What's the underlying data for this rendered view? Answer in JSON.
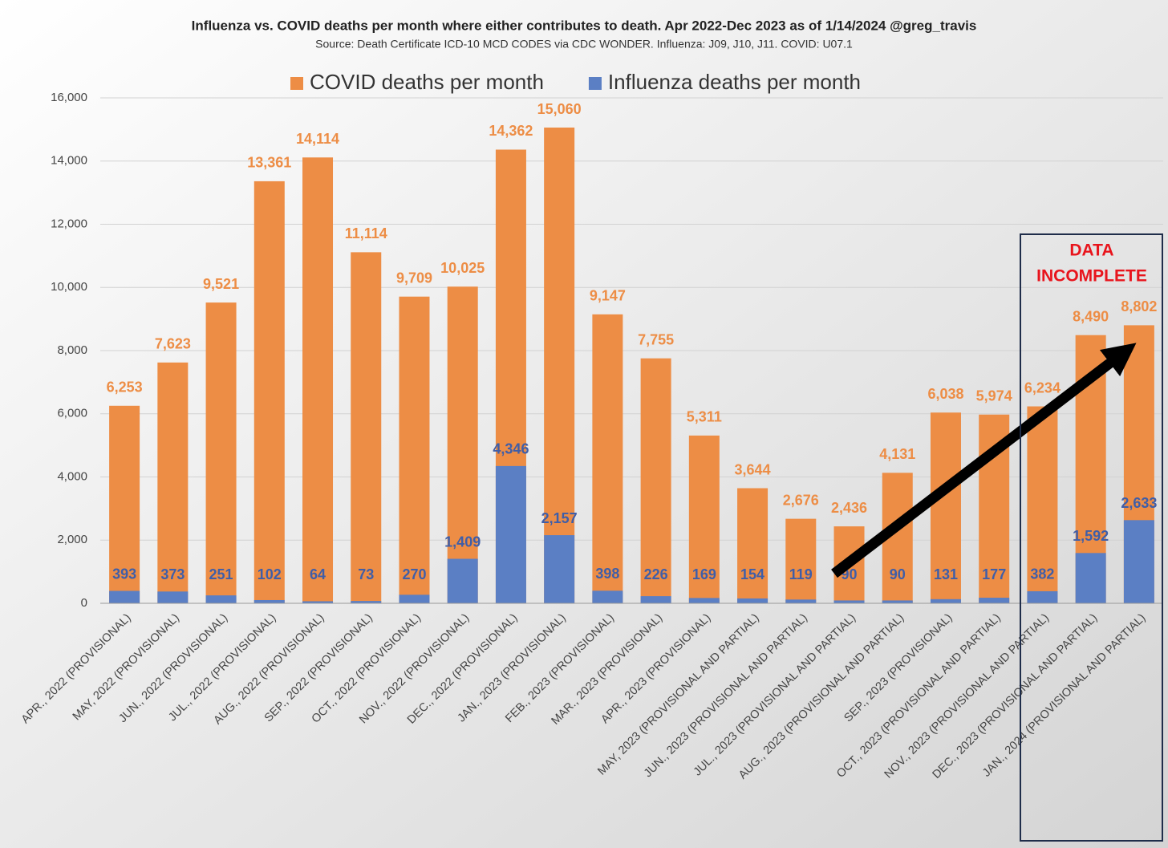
{
  "chart_data": {
    "type": "bar",
    "title": "Influenza vs. COVID deaths per month where either contributes to death.  Apr 2022-Dec 2023 as of 1/14/2024 @greg_travis",
    "subtitle": "Source: Death Certificate ICD-10 MCD CODES via CDC WONDER.  Influenza: J09, J10, J11.  COVID: U07.1",
    "annotation": [
      "DATA",
      "INCOMPLETE"
    ],
    "categories": [
      "APR., 2022 (PROVISIONAL)",
      "MAY, 2022 (PROVISIONAL)",
      "JUN., 2022 (PROVISIONAL)",
      "JUL., 2022 (PROVISIONAL)",
      "AUG., 2022 (PROVISIONAL)",
      "SEP., 2022 (PROVISIONAL)",
      "OCT., 2022 (PROVISIONAL)",
      "NOV., 2022 (PROVISIONAL)",
      "DEC., 2022 (PROVISIONAL)",
      "JAN., 2023 (PROVISIONAL)",
      "FEB., 2023 (PROVISIONAL)",
      "MAR., 2023 (PROVISIONAL)",
      "APR., 2023 (PROVISIONAL)",
      "MAY, 2023 (PROVISIONAL AND PARTIAL)",
      "JUN., 2023 (PROVISIONAL AND PARTIAL)",
      "JUL., 2023 (PROVISIONAL AND PARTIAL)",
      "AUG., 2023 (PROVISIONAL AND PARTIAL)",
      "SEP., 2023 (PROVISIONAL)",
      "OCT., 2023 (PROVISIONAL AND PARTIAL)",
      "NOV., 2023 (PROVISIONAL AND PARTIAL)",
      "DEC., 2023 (PROVISIONAL AND PARTIAL)",
      "JAN., 2024 (PROVISIONAL AND PARTIAL)"
    ],
    "series": [
      {
        "name": "COVID deaths per month",
        "color": "#ed8d45",
        "label_color": "#ed8d45",
        "values": [
          6253,
          7623,
          9521,
          13361,
          14114,
          11114,
          9709,
          10025,
          14362,
          15060,
          9147,
          7755,
          5311,
          3644,
          2676,
          2436,
          4131,
          6038,
          5974,
          6234,
          8490,
          8802
        ],
        "value_labels": [
          "6,253",
          "7,623",
          "9,521",
          "13,361",
          "14,114",
          "11,114",
          "9,709",
          "10,025",
          "14,362",
          "15,060",
          "9,147",
          "7,755",
          "5,311",
          "3,644",
          "2,676",
          "2,436",
          "4,131",
          "6,038",
          "5,974",
          "6,234",
          "8,490",
          "8,802"
        ]
      },
      {
        "name": "Influenza deaths per month",
        "color": "#5b7fc4",
        "label_color": "#3f5ea8",
        "values": [
          393,
          373,
          251,
          102,
          64,
          73,
          270,
          1409,
          4346,
          2157,
          398,
          226,
          169,
          154,
          119,
          90,
          90,
          131,
          177,
          382,
          1592,
          2633
        ],
        "value_labels": [
          "393",
          "373",
          "251",
          "102",
          "64",
          "73",
          "270",
          "1,409",
          "4,346",
          "2,157",
          "398",
          "226",
          "169",
          "154",
          "119",
          "90",
          "90",
          "131",
          "177",
          "382",
          "1,592",
          "2,633"
        ]
      }
    ],
    "ylim": [
      0,
      16000
    ],
    "yticks": [
      0,
      {
        "value": 2000,
        "label": "2,000"
      },
      {
        "value": 4000,
        "label": "4,000"
      },
      {
        "value": 6000,
        "label": "6,000"
      },
      {
        "value": 8000,
        "label": "8,000"
      },
      {
        "value": 10000,
        "label": "10,000"
      },
      {
        "value": 12000,
        "label": "12,000"
      },
      {
        "value": 14000,
        "label": "14,000"
      },
      {
        "value": 16000,
        "label": "16,000"
      }
    ],
    "grid": true,
    "legend": "top"
  }
}
